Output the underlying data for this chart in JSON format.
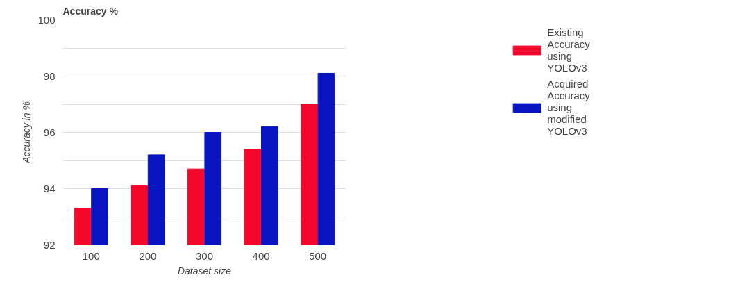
{
  "chart_data": {
    "type": "bar",
    "title": "Accuracy %",
    "xlabel": "Dataset size",
    "ylabel": "Accuracy in %",
    "categories": [
      "100",
      "200",
      "300",
      "400",
      "500"
    ],
    "series": [
      {
        "name": "Existing Accuracy using YOLOv3",
        "color": "#f5072b",
        "values": [
          93.3,
          94.1,
          94.7,
          95.4,
          97.0
        ]
      },
      {
        "name": "Acquired Accuracy using modified YOLOv3",
        "color": "#0714c0",
        "values": [
          94.0,
          95.2,
          96.0,
          96.2,
          98.1
        ]
      }
    ],
    "ylim": [
      92,
      100
    ],
    "yticks": [
      92,
      {
        "value": 93,
        "label": null
      },
      94,
      {
        "value": 95,
        "label": null
      },
      96,
      {
        "value": 97,
        "label": null
      },
      98,
      {
        "value": 99,
        "label": null
      },
      100
    ],
    "grid": "y",
    "legend": "top right"
  }
}
